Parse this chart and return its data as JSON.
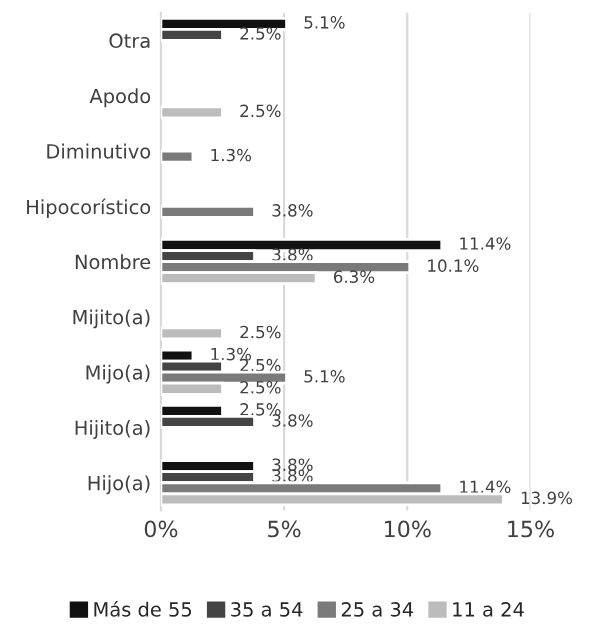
{
  "chart_data": {
    "type": "bar",
    "orientation": "horizontal",
    "categories": [
      "Otra",
      "Apodo",
      "Diminutivo",
      "Hipocorístico",
      "Nombre",
      "Mijito(a)",
      "Mijo(a)",
      "Hijito(a)",
      "Hijo(a)"
    ],
    "series": [
      {
        "name": "Más de 55",
        "color": "#111111",
        "values": [
          5.1,
          null,
          null,
          null,
          11.4,
          null,
          1.3,
          2.5,
          3.8
        ],
        "value_labels": [
          "5.1%",
          null,
          null,
          null,
          "11.4%",
          null,
          "1.3%",
          "2.5%",
          "3.8%"
        ]
      },
      {
        "name": "35 a 54",
        "color": "#444444",
        "values": [
          2.5,
          null,
          null,
          null,
          3.8,
          null,
          2.5,
          3.8,
          3.8
        ],
        "value_labels": [
          "2.5%",
          null,
          null,
          null,
          "3.8%",
          null,
          "2.5%",
          "3.8%",
          "3.8%"
        ]
      },
      {
        "name": "25 a 34",
        "color": "#7a7a7a",
        "values": [
          null,
          null,
          1.3,
          3.8,
          10.1,
          null,
          5.1,
          null,
          11.4
        ],
        "value_labels": [
          null,
          null,
          "1.3%",
          "3.8%",
          "10.1%",
          null,
          "5.1%",
          null,
          "11.4%"
        ]
      },
      {
        "name": "11 a 24",
        "color": "#bcbcbc",
        "values": [
          null,
          2.5,
          null,
          null,
          6.3,
          2.5,
          2.5,
          null,
          13.9
        ],
        "value_labels": [
          null,
          "2.5%",
          null,
          null,
          "6.3%",
          "2.5%",
          "2.5%",
          null,
          "13.9%"
        ]
      }
    ],
    "xlim": [
      0,
      15
    ],
    "xticks": [
      {
        "value": 0,
        "label": "0%"
      },
      {
        "value": 5,
        "label": "5%"
      },
      {
        "value": 10,
        "label": "10%"
      },
      {
        "value": 15,
        "label": "15%"
      }
    ],
    "grid": "x",
    "legend": "bottom"
  }
}
